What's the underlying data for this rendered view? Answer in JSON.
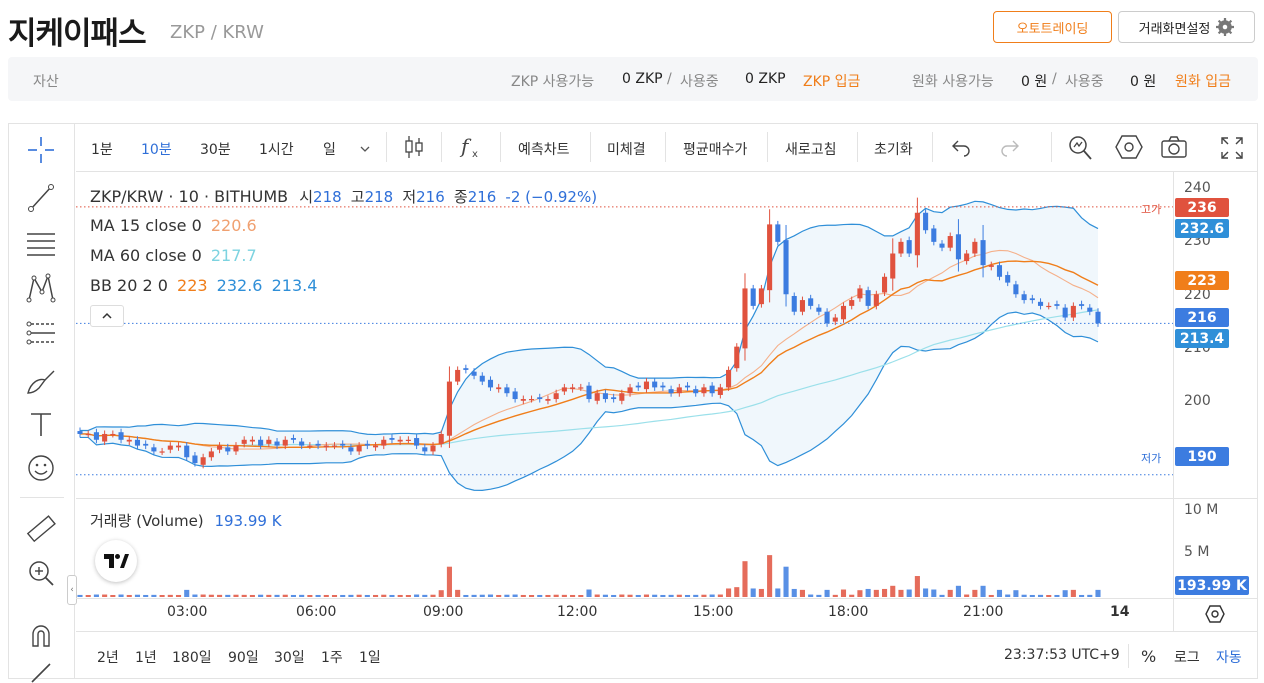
{
  "header": {
    "title": "지케이패스",
    "pair": "ZKP / KRW",
    "auto_trading": "오토트레이딩",
    "screen_settings": "거래화면설정"
  },
  "assets": {
    "label": "자산",
    "zkp_available_label": "ZKP 사용가능",
    "zkp_available": "0 ZKP",
    "slash": "/",
    "in_use_label": "사용중",
    "zkp_in_use": "0 ZKP",
    "zkp_deposit": "ZKP 입금",
    "krw_available_label": "원화 사용가능",
    "krw_available": "0 원",
    "krw_in_use_label": "사용중",
    "krw_in_use": "0 원",
    "krw_deposit": "원화 입금"
  },
  "toolbar": {
    "intervals": [
      "1분",
      "10분",
      "30분",
      "1시간",
      "일"
    ],
    "active_interval": "10분",
    "buttons": [
      "예측차트",
      "미체결",
      "평균매수가",
      "새로고침",
      "초기화"
    ]
  },
  "legend": {
    "symbol": "ZKP/KRW · 10 · BITHUMB",
    "o_label": "시",
    "o": "218",
    "h_label": "고",
    "h": "218",
    "l_label": "저",
    "l": "216",
    "c_label": "종",
    "c": "216",
    "chg": "-2 (−0.92%)",
    "ma15_label": "MA 15 close 0",
    "ma15": "220.6",
    "ma60_label": "MA 60 close 0",
    "ma60": "217.7",
    "bb_label": "BB 20 2 0",
    "bb_mid": "223",
    "bb_up": "232.6",
    "bb_low": "213.4",
    "volume_label": "거래량 (Volume)",
    "volume": "193.99 K"
  },
  "price_axis": {
    "ticks": [
      "240",
      "230",
      "220",
      "210",
      "200"
    ],
    "high_label": "고가",
    "high": "236",
    "bb_up": "232.6",
    "bb_mid": "223",
    "last": "216",
    "bb_low": "213.4",
    "low_label": "저가",
    "low": "190"
  },
  "volume_axis": {
    "ticks": [
      "10 M",
      "5 M"
    ],
    "current": "193.99 K"
  },
  "time_axis": [
    "03:00",
    "06:00",
    "09:00",
    "12:00",
    "15:00",
    "18:00",
    "21:00",
    "14"
  ],
  "bottom": {
    "ranges": [
      "2년",
      "1년",
      "180일",
      "90일",
      "30일",
      "1주",
      "1일"
    ],
    "clock": "23:37:53 UTC+9",
    "percent": "%",
    "log": "로그",
    "auto": "자동"
  },
  "colors": {
    "up": "#e0523e",
    "down": "#3c7ce0",
    "orange": "#f07e1a",
    "ma60": "#7dd3e0",
    "bb": "#2f8fd8"
  },
  "chart_data": {
    "type": "candlestick",
    "symbol": "ZKP/KRW",
    "interval": "10",
    "ylim": [
      186,
      242
    ],
    "closes": [
      197,
      197,
      196,
      197,
      197,
      196,
      196,
      195,
      195,
      194,
      194,
      195,
      195,
      193,
      192,
      193,
      194,
      195,
      194,
      195,
      196,
      196,
      195,
      196,
      195,
      196,
      196,
      195,
      195,
      195,
      195,
      195,
      195,
      194,
      195,
      195,
      195,
      196,
      196,
      196,
      196,
      195,
      194,
      195,
      197,
      206,
      208,
      208,
      207,
      206,
      205,
      205,
      204,
      203,
      203,
      203,
      203,
      203,
      204,
      205,
      205,
      205,
      203,
      204,
      203,
      203,
      204,
      205,
      205,
      206,
      205,
      205,
      204,
      205,
      205,
      204,
      205,
      204,
      205,
      208,
      212,
      222,
      219,
      222,
      233,
      230,
      221,
      218,
      220,
      219,
      218,
      216,
      217,
      219,
      220,
      222,
      219,
      221,
      224,
      228,
      230,
      228,
      235,
      232,
      230,
      229,
      231,
      227,
      228,
      230,
      226,
      226,
      224,
      223,
      221,
      220,
      220,
      219,
      219,
      219,
      217,
      219,
      219,
      218,
      216
    ],
    "volume_peak_near": "17:30",
    "last_volume": "193.99 K"
  }
}
